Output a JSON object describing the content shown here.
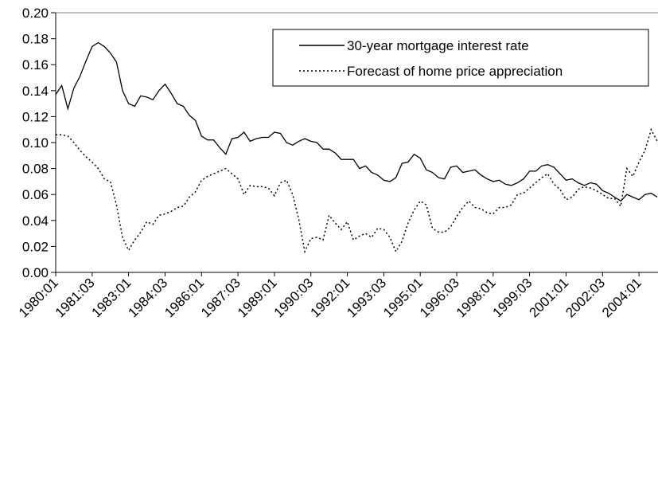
{
  "chart_data": {
    "type": "line",
    "categories": [
      "1980:01",
      null,
      null,
      null,
      null,
      null,
      "1981:03",
      null,
      null,
      null,
      null,
      null,
      "1983:01",
      null,
      null,
      null,
      null,
      null,
      "1984:03",
      null,
      null,
      null,
      null,
      null,
      "1986:01",
      null,
      null,
      null,
      null,
      null,
      "1987:03",
      null,
      null,
      null,
      null,
      null,
      "1989:01",
      null,
      null,
      null,
      null,
      null,
      "1990:03",
      null,
      null,
      null,
      null,
      null,
      "1992:01",
      null,
      null,
      null,
      null,
      null,
      "1993:03",
      null,
      null,
      null,
      null,
      null,
      "1995:01",
      null,
      null,
      null,
      null,
      null,
      "1996:03",
      null,
      null,
      null,
      null,
      null,
      "1998:01",
      null,
      null,
      null,
      null,
      null,
      "1999:03",
      null,
      null,
      null,
      null,
      null,
      "2001:01",
      null,
      null,
      null,
      null,
      null,
      "2002:03",
      null,
      null,
      null,
      null,
      null,
      "2004:01",
      null,
      null,
      null
    ],
    "series": [
      {
        "name": "30-year mortgage interest rate",
        "color": "#000000",
        "dash": "solid",
        "values": [
          0.137,
          0.144,
          0.126,
          0.142,
          0.151,
          0.163,
          0.174,
          0.177,
          0.174,
          0.169,
          0.162,
          0.14,
          0.13,
          0.128,
          0.136,
          0.135,
          0.133,
          0.14,
          0.145,
          0.138,
          0.13,
          0.128,
          0.121,
          0.117,
          0.105,
          0.102,
          0.102,
          0.096,
          0.091,
          0.103,
          0.104,
          0.108,
          0.101,
          0.103,
          0.104,
          0.104,
          0.108,
          0.107,
          0.1,
          0.098,
          0.101,
          0.103,
          0.101,
          0.1,
          0.095,
          0.095,
          0.092,
          0.087,
          0.087,
          0.087,
          0.08,
          0.082,
          0.077,
          0.075,
          0.071,
          0.07,
          0.073,
          0.084,
          0.085,
          0.091,
          0.088,
          0.079,
          0.077,
          0.073,
          0.072,
          0.081,
          0.082,
          0.077,
          0.078,
          0.079,
          0.075,
          0.072,
          0.07,
          0.071,
          0.068,
          0.067,
          0.069,
          0.072,
          0.078,
          0.078,
          0.082,
          0.083,
          0.081,
          0.076,
          0.071,
          0.072,
          0.069,
          0.067,
          0.069,
          0.068,
          0.063,
          0.061,
          0.058,
          0.055,
          0.06,
          0.058,
          0.056,
          0.06,
          0.061,
          0.058
        ]
      },
      {
        "name": "Forecast of home price appreciation",
        "color": "#000000",
        "dash": "dotted",
        "values": [
          0.106,
          0.106,
          0.105,
          0.1,
          0.094,
          0.089,
          0.085,
          0.08,
          0.072,
          0.07,
          0.052,
          0.027,
          0.017,
          0.025,
          0.031,
          0.039,
          0.037,
          0.044,
          0.045,
          0.047,
          0.05,
          0.051,
          0.058,
          0.062,
          0.071,
          0.074,
          0.076,
          0.078,
          0.08,
          0.076,
          0.072,
          0.06,
          0.067,
          0.066,
          0.066,
          0.065,
          0.059,
          0.069,
          0.071,
          0.06,
          0.041,
          0.016,
          0.026,
          0.027,
          0.025,
          0.044,
          0.038,
          0.033,
          0.039,
          0.025,
          0.028,
          0.03,
          0.027,
          0.034,
          0.033,
          0.027,
          0.016,
          0.024,
          0.038,
          0.048,
          0.055,
          0.052,
          0.034,
          0.031,
          0.031,
          0.035,
          0.043,
          0.05,
          0.055,
          0.05,
          0.049,
          0.046,
          0.045,
          0.05,
          0.05,
          0.052,
          0.06,
          0.061,
          0.065,
          0.069,
          0.073,
          0.076,
          0.068,
          0.064,
          0.056,
          0.058,
          0.064,
          0.066,
          0.065,
          0.063,
          0.06,
          0.057,
          0.057,
          0.051,
          0.08,
          0.074,
          0.085,
          0.094,
          0.11,
          0.101
        ]
      }
    ],
    "ylim": [
      0,
      0.2
    ],
    "yticks": [
      {
        "value": 0,
        "label": "0.00"
      },
      {
        "value": 0.02,
        "label": "0.02"
      },
      {
        "value": 0.04,
        "label": "0.04"
      },
      {
        "value": 0.06,
        "label": "0.06"
      },
      {
        "value": 0.08,
        "label": "0.08"
      },
      {
        "value": 0.1,
        "label": "0.10"
      },
      {
        "value": 0.12,
        "label": "0.12"
      },
      {
        "value": 0.14,
        "label": "0.14"
      },
      {
        "value": 0.16,
        "label": "0.16"
      },
      {
        "value": 0.18,
        "label": "0.18"
      },
      {
        "value": 0.2,
        "label": "0.20"
      }
    ],
    "legend": "top-right"
  }
}
